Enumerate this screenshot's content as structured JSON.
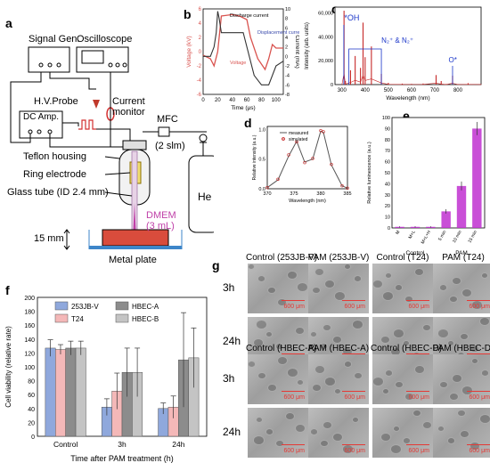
{
  "panels": {
    "a": "a",
    "b": "b",
    "c": "c",
    "d": "d",
    "e": "e",
    "f": "f",
    "g": "g"
  },
  "setup": {
    "signal_gen": "Signal Gen.",
    "oscilloscope": "Oscilloscope",
    "hv_probe": "H.V.Probe",
    "current_monitor": "Current monitor",
    "dc_amp": "DC Amp.",
    "mfc": "MFC",
    "flow": "(2 slm)",
    "teflon": "Teflon housing",
    "ring": "Ring electrode",
    "glass": "Glass tube (ID 2.4 mm)",
    "dmem": "DMEM",
    "volume": "(3 mL)",
    "gap": "15 mm",
    "he": "He",
    "plate": "Metal plate"
  },
  "panel_b": {
    "xlabel": "Time (μs)",
    "ylabel_left": "Voltage (kV)",
    "ylabel_right": "Current (mA)",
    "ann_discharge": "Discharge current",
    "ann_displacement": "Displacement current",
    "ann_voltage": "Voltage",
    "xticks": [
      "0",
      "20",
      "40",
      "60",
      "80",
      "100"
    ],
    "yticks_left": [
      "-6",
      "-4",
      "-2",
      "0",
      "2",
      "4",
      "6"
    ],
    "yticks_right": [
      "-8",
      "-6",
      "-4",
      "-2",
      "0",
      "2",
      "4",
      "6",
      "8",
      "10"
    ]
  },
  "panel_c": {
    "xlabel": "Wavelength (nm)",
    "ylabel": "Intensity (arb. units)",
    "ann_oh": "*OH",
    "ann_n2": "N₂⁺ & N₂⁺",
    "ann_o": "O*",
    "xticks": [
      "300",
      "400",
      "500",
      "600",
      "700",
      "800"
    ],
    "yticks": [
      "0",
      "20,000",
      "40,000",
      "60,000"
    ]
  },
  "panel_d": {
    "xlabel": "Wavelength (nm)",
    "ylabel": "Relative intensity (a.u.)",
    "legend": [
      "measured",
      "simulated"
    ],
    "xticks": [
      "370",
      "375",
      "380",
      "385"
    ],
    "yticks": [
      "0.0",
      "0.5",
      "1.0"
    ]
  },
  "panel_e": {
    "ylabel": "Relative luminescence (a.u.)",
    "yticks": [
      "0",
      "10",
      "20",
      "30",
      "40",
      "50",
      "60",
      "70",
      "80",
      "90",
      "100"
    ],
    "group_control": "Control",
    "group_pam": "PAM"
  },
  "panel_f": {
    "ylabel": "Cell viability (relative rate)",
    "xlabel": "Time after PAM treatment (h)",
    "yticks": [
      "0",
      "20",
      "40",
      "60",
      "80",
      "100",
      "120",
      "140",
      "160",
      "180",
      "200"
    ],
    "legend": [
      "253JB-V",
      "T24",
      "HBEC-A",
      "HBEC-B"
    ]
  },
  "panel_g": {
    "row_labels_top": [
      "3h",
      "24h"
    ],
    "row_labels_bottom": [
      "3h",
      "24h"
    ],
    "titles_top": [
      "Control (253JB-V)",
      "PAM (253JB-V)",
      "Control (T24)",
      "PAM (T24)"
    ],
    "titles_bottom": [
      "Control (HBEC-A)",
      "PAM (HBEC-A)",
      "Control (HBEC-D)",
      "PAM (HBEC-D)"
    ],
    "scalebar": "600 μm"
  },
  "colors": {
    "voltage": "#d9534f",
    "current": "#333333",
    "spectrum": "#c62828",
    "annotation": "#1a35c9",
    "bar_e": "#c030d0",
    "f253": "#8fa8dc",
    "fT24": "#f4b8b8",
    "fA": "#8c8c8c",
    "fB": "#c4c4c4"
  },
  "chart_data": [
    {
      "type": "line",
      "title": "",
      "xlabel": "Time (μs)",
      "ylabel": "Voltage (kV) / Current (mA)",
      "xlim": [
        0,
        110
      ],
      "series": [
        {
          "name": "Voltage",
          "x": [
            0,
            10,
            15,
            20,
            25,
            40,
            50,
            60,
            65,
            75,
            85,
            90,
            95,
            100,
            110
          ],
          "y": [
            -0.5,
            -1,
            -2,
            0,
            5,
            5.2,
            5,
            4.5,
            2,
            -1,
            -2.5,
            -1,
            1,
            0.5,
            0.5
          ]
        },
        {
          "name": "Discharge current",
          "x": [
            0,
            10,
            15,
            18,
            20,
            22,
            25,
            40,
            55,
            70,
            80,
            90,
            100,
            110
          ],
          "y": [
            0,
            0,
            2,
            5,
            9.5,
            8,
            5,
            5,
            5,
            -4,
            -6,
            -6,
            -2,
            -1
          ]
        }
      ]
    },
    {
      "type": "line",
      "title": "",
      "xlabel": "Wavelength (nm)",
      "ylabel": "Intensity (arb. units)",
      "xlim": [
        270,
        900
      ],
      "ylim": [
        0,
        65000
      ],
      "series": [
        {
          "name": "spectrum",
          "x": [
            300,
            309,
            315,
            337,
            357,
            380,
            391,
            400,
            427,
            470,
            500,
            560,
            600,
            650,
            706,
            728,
            750,
            777,
            800,
            844,
            900
          ],
          "y": [
            200,
            62000,
            3000,
            12000,
            24000,
            14000,
            52000,
            23000,
            32000,
            9000,
            1500,
            800,
            600,
            900,
            8000,
            3000,
            500,
            7500,
            400,
            1200,
            300
          ]
        }
      ]
    },
    {
      "type": "line",
      "title": "",
      "xlabel": "Wavelength (nm)",
      "ylabel": "Relative intensity (a.u.)",
      "xlim": [
        370,
        385
      ],
      "ylim": [
        0,
        1.05
      ],
      "series": [
        {
          "name": "measured",
          "x": [
            370,
            372,
            374,
            375.5,
            377,
            378.5,
            380,
            380.5,
            382,
            384,
            385
          ],
          "y": [
            0.02,
            0.15,
            0.55,
            0.8,
            0.45,
            0.5,
            0.97,
            0.95,
            0.4,
            0.05,
            0.01
          ]
        },
        {
          "name": "simulated",
          "x": [
            370,
            372,
            374,
            375.5,
            377,
            378.5,
            380,
            380.5,
            382,
            384,
            385
          ],
          "y": [
            0.02,
            0.16,
            0.57,
            0.79,
            0.44,
            0.51,
            0.98,
            0.96,
            0.41,
            0.05,
            0.01
          ]
        }
      ]
    },
    {
      "type": "bar",
      "title": "",
      "ylabel": "Relative luminescence (a.u.)",
      "ylim": [
        0,
        100
      ],
      "categories": [
        "M",
        "M+L",
        "M+L+H",
        "5 min",
        "10 min",
        "15 min"
      ],
      "values": [
        1,
        1,
        1,
        15,
        38,
        90
      ],
      "errors": [
        0.5,
        0.5,
        0.5,
        2,
        4,
        6
      ]
    },
    {
      "type": "bar",
      "title": "",
      "xlabel": "Time after PAM treatment (h)",
      "ylabel": "Cell viability (relative rate)",
      "ylim": [
        0,
        200
      ],
      "categories": [
        "Control",
        "3h",
        "24h"
      ],
      "series": [
        {
          "name": "253JB-V",
          "values": [
            127,
            42,
            40
          ],
          "errors": [
            12,
            12,
            8
          ]
        },
        {
          "name": "T24",
          "values": [
            125,
            65,
            42
          ],
          "errors": [
            7,
            26,
            16
          ]
        },
        {
          "name": "HBEC-A",
          "values": [
            127,
            92,
            110
          ],
          "errors": [
            10,
            35,
            68
          ]
        },
        {
          "name": "HBEC-B",
          "values": [
            127,
            92,
            113
          ],
          "errors": [
            10,
            35,
            43
          ]
        }
      ]
    }
  ]
}
